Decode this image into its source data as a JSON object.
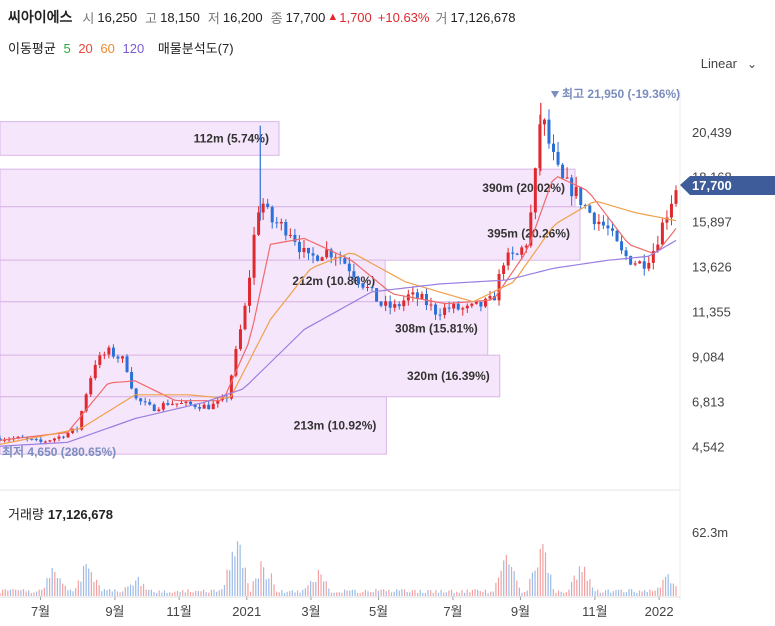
{
  "header": {
    "name": "씨아이에스",
    "open_label": "시",
    "open": "16,250",
    "high_label": "고",
    "high": "18,150",
    "low_label": "저",
    "low": "16,200",
    "close_label": "종",
    "close": "17,700",
    "change": "1,700",
    "change_pct": "+10.63%",
    "volume_label": "거",
    "volume": "17,126,678"
  },
  "moving_avg": {
    "label": "이동평균",
    "periods": [
      {
        "value": "5",
        "color": "#2eaa3c"
      },
      {
        "value": "20",
        "color": "#e8473b"
      },
      {
        "value": "60",
        "color": "#ef8a2a"
      },
      {
        "value": "120",
        "color": "#7a5ccf"
      }
    ],
    "volume_profile_label": "매물분석도(7)"
  },
  "scale_label": "Linear",
  "price_badge": "17,700",
  "volume_panel": {
    "label": "거래량",
    "value": "17,126,678",
    "axis_tick": "62.3m"
  },
  "colors": {
    "up": "#e0292f",
    "down": "#2b70d6",
    "profile_fill": "#f6e6fb",
    "profile_stroke": "#d9b6e6",
    "badge": "#3e5c9a"
  },
  "chart_data": {
    "type": "candlestick",
    "y_ticks": [
      "20,439",
      "18,168",
      "15,897",
      "13,626",
      "11,355",
      "9,084",
      "6,813",
      "4,542"
    ],
    "y_tick_values": [
      20439,
      18168,
      15897,
      13626,
      11355,
      9084,
      6813,
      4542
    ],
    "x_ticks": [
      "7월",
      "9월",
      "11월",
      "2021",
      "3월",
      "5월",
      "7월",
      "9월",
      "11월",
      "2022"
    ],
    "ylim": [
      3400,
      22600
    ],
    "high_marker": "최고 21,950 (-19.36%)",
    "low_marker": "최저 4,650 (280.65%)",
    "current_price": 17700,
    "volume_profile": [
      {
        "low": 19300,
        "high": 21000,
        "label": "112m (5.74%)"
      },
      {
        "low": 16700,
        "high": 18600,
        "label": "390m (20.02%)"
      },
      {
        "low": 14000,
        "high": 16700,
        "label": "395m (20.26%)"
      },
      {
        "low": 11900,
        "high": 14000,
        "label": "212m (10.86%)"
      },
      {
        "low": 9200,
        "high": 11900,
        "label": "308m (15.81%)"
      },
      {
        "low": 7100,
        "high": 9200,
        "label": "320m (16.39%)"
      },
      {
        "low": 4200,
        "high": 7100,
        "label": "213m (10.92%)"
      }
    ],
    "price_path": [
      [
        0,
        5000
      ],
      [
        0.03,
        5000
      ],
      [
        0.06,
        4800
      ],
      [
        0.09,
        5100
      ],
      [
        0.115,
        5500
      ],
      [
        0.125,
        7000
      ],
      [
        0.14,
        8800
      ],
      [
        0.16,
        9400
      ],
      [
        0.185,
        8900
      ],
      [
        0.2,
        7000
      ],
      [
        0.225,
        6500
      ],
      [
        0.25,
        6800
      ],
      [
        0.28,
        6700
      ],
      [
        0.31,
        6600
      ],
      [
        0.335,
        7000
      ],
      [
        0.35,
        9500
      ],
      [
        0.365,
        12000
      ],
      [
        0.375,
        15000
      ],
      [
        0.385,
        17200
      ],
      [
        0.4,
        16000
      ],
      [
        0.43,
        15500
      ],
      [
        0.455,
        14000
      ],
      [
        0.48,
        14500
      ],
      [
        0.5,
        14300
      ],
      [
        0.52,
        13500
      ],
      [
        0.545,
        12500
      ],
      [
        0.565,
        11700
      ],
      [
        0.585,
        11600
      ],
      [
        0.605,
        12200
      ],
      [
        0.625,
        12000
      ],
      [
        0.645,
        11400
      ],
      [
        0.665,
        11600
      ],
      [
        0.69,
        11500
      ],
      [
        0.71,
        11700
      ],
      [
        0.73,
        12000
      ],
      [
        0.745,
        14000
      ],
      [
        0.765,
        14200
      ],
      [
        0.78,
        15000
      ],
      [
        0.79,
        17500
      ],
      [
        0.8,
        21500
      ],
      [
        0.815,
        19500
      ],
      [
        0.83,
        18000
      ],
      [
        0.85,
        17500
      ],
      [
        0.87,
        16500
      ],
      [
        0.9,
        15500
      ],
      [
        0.92,
        14300
      ],
      [
        0.935,
        14000
      ],
      [
        0.95,
        13800
      ],
      [
        0.965,
        14400
      ],
      [
        0.98,
        15800
      ],
      [
        1.0,
        17700
      ]
    ],
    "ma_paths": {
      "ma20": [
        [
          0,
          4900
        ],
        [
          0.1,
          5300
        ],
        [
          0.16,
          7800
        ],
        [
          0.2,
          7900
        ],
        [
          0.26,
          6900
        ],
        [
          0.33,
          6900
        ],
        [
          0.37,
          10000
        ],
        [
          0.4,
          14800
        ],
        [
          0.45,
          15100
        ],
        [
          0.52,
          14000
        ],
        [
          0.58,
          12300
        ],
        [
          0.66,
          11800
        ],
        [
          0.73,
          12000
        ],
        [
          0.78,
          14500
        ],
        [
          0.82,
          18300
        ],
        [
          0.87,
          17500
        ],
        [
          0.93,
          14800
        ],
        [
          0.97,
          14300
        ],
        [
          1.0,
          15600
        ]
      ],
      "ma60": [
        [
          0,
          4700
        ],
        [
          0.12,
          5500
        ],
        [
          0.2,
          7200
        ],
        [
          0.28,
          7200
        ],
        [
          0.34,
          7000
        ],
        [
          0.4,
          11000
        ],
        [
          0.46,
          13600
        ],
        [
          0.52,
          14400
        ],
        [
          0.6,
          12900
        ],
        [
          0.7,
          11900
        ],
        [
          0.76,
          12900
        ],
        [
          0.82,
          15800
        ],
        [
          0.88,
          17000
        ],
        [
          0.94,
          16400
        ],
        [
          1.0,
          16000
        ]
      ],
      "ma120": [
        [
          0,
          4600
        ],
        [
          0.1,
          4800
        ],
        [
          0.2,
          6000
        ],
        [
          0.3,
          6800
        ],
        [
          0.36,
          7500
        ],
        [
          0.45,
          10500
        ],
        [
          0.55,
          12400
        ],
        [
          0.65,
          12800
        ],
        [
          0.75,
          13000
        ],
        [
          0.82,
          13600
        ],
        [
          0.9,
          14000
        ],
        [
          0.96,
          14200
        ],
        [
          1.0,
          15000
        ]
      ]
    }
  }
}
